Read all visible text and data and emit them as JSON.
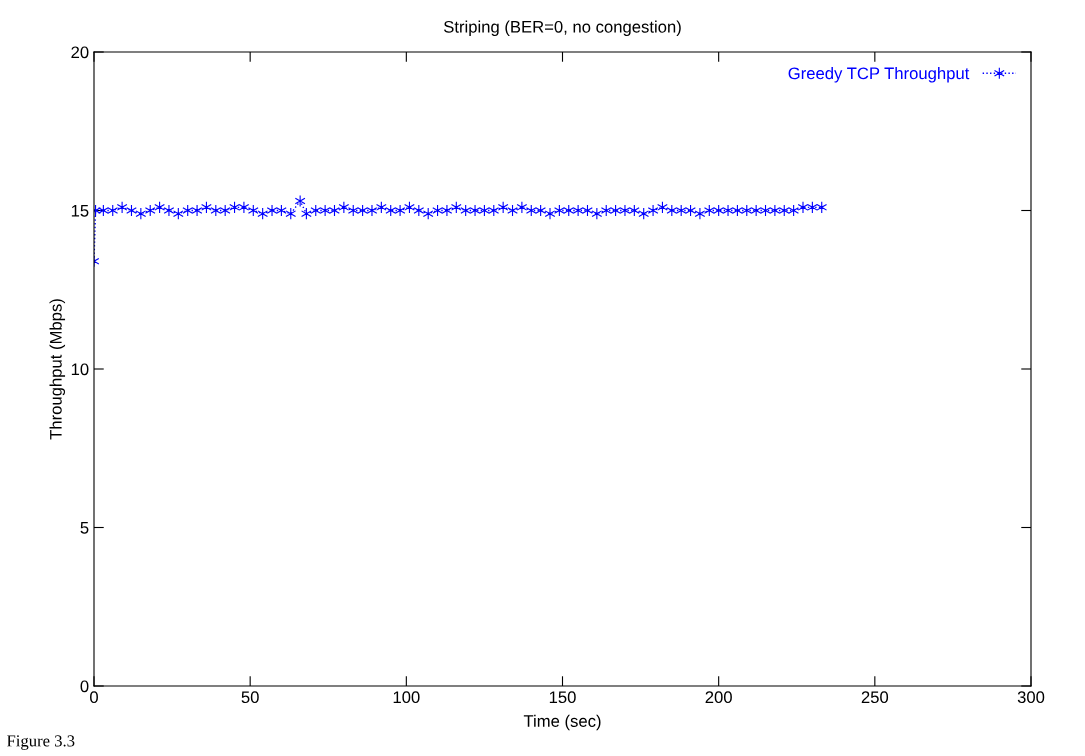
{
  "chart_data": {
    "type": "line",
    "title": "Striping (BER=0, no congestion)",
    "xlabel": "Time (sec)",
    "ylabel": "Throughput (Mbps)",
    "xlim": [
      0,
      300
    ],
    "ylim": [
      0,
      20
    ],
    "xticks": [
      0,
      50,
      100,
      150,
      200,
      250,
      300
    ],
    "yticks": [
      0,
      5,
      10,
      15,
      20
    ],
    "grid": false,
    "legend": "top right",
    "marker": "cross",
    "line_style": "dotted",
    "annotations": [
      "Figure 3.3"
    ],
    "series": [
      {
        "name": "Greedy TCP Throughput",
        "color": "#0000ff",
        "x": [
          0,
          0.5,
          3,
          6,
          9,
          12,
          15,
          18,
          21,
          24,
          27,
          30,
          33,
          36,
          39,
          42,
          45,
          48,
          51,
          54,
          57,
          60,
          63,
          66,
          68,
          71,
          74,
          77,
          80,
          83,
          86,
          89,
          92,
          95,
          98,
          101,
          104,
          107,
          110,
          113,
          116,
          119,
          122,
          125,
          128,
          131,
          134,
          137,
          140,
          143,
          146,
          149,
          152,
          155,
          158,
          161,
          164,
          167,
          170,
          173,
          176,
          179,
          182,
          185,
          188,
          191,
          194,
          197,
          200,
          203,
          206,
          209,
          212,
          215,
          218,
          221,
          224,
          227,
          230,
          233
        ],
        "values": [
          13.4,
          15.0,
          15.0,
          15.0,
          15.1,
          15.0,
          14.9,
          15.0,
          15.1,
          15.0,
          14.9,
          15.0,
          15.0,
          15.1,
          15.0,
          15.0,
          15.1,
          15.1,
          15.0,
          14.9,
          15.0,
          15.0,
          14.9,
          15.3,
          14.9,
          15.0,
          15.0,
          15.0,
          15.1,
          15.0,
          15.0,
          15.0,
          15.1,
          15.0,
          15.0,
          15.1,
          15.0,
          14.9,
          15.0,
          15.0,
          15.1,
          15.0,
          15.0,
          15.0,
          15.0,
          15.1,
          15.0,
          15.1,
          15.0,
          15.0,
          14.9,
          15.0,
          15.0,
          15.0,
          15.0,
          14.9,
          15.0,
          15.0,
          15.0,
          15.0,
          14.9,
          15.0,
          15.1,
          15.0,
          15.0,
          15.0,
          14.9,
          15.0,
          15.0,
          15.0,
          15.0,
          15.0,
          15.0,
          15.0,
          15.0,
          15.0,
          15.0,
          15.1,
          15.1,
          15.1
        ]
      }
    ]
  }
}
